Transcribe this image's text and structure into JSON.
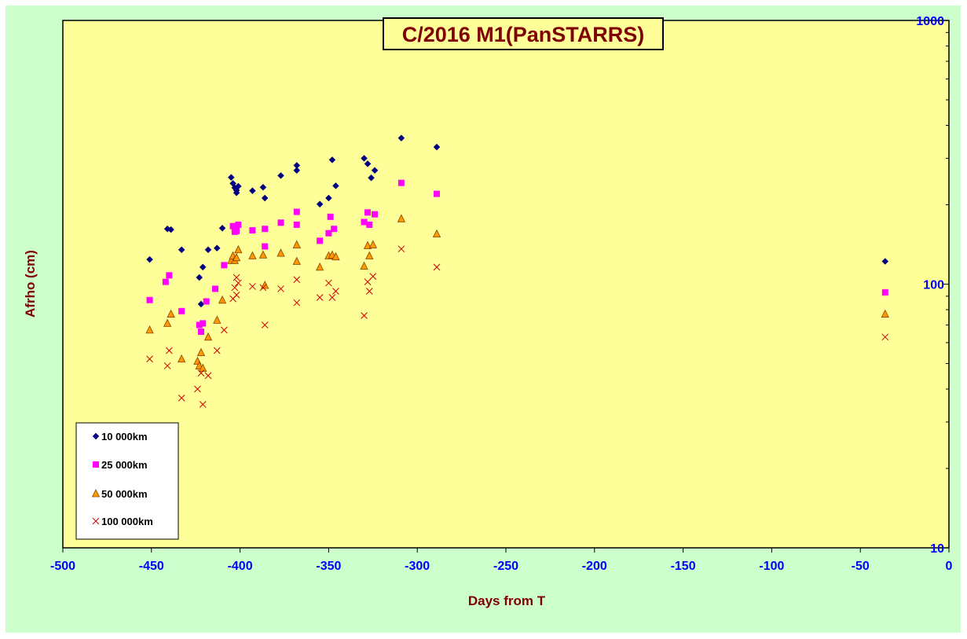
{
  "chart_data": {
    "type": "scatter",
    "title": "C/2016 M1(PanSTARRS)",
    "xlabel": "Days from T",
    "ylabel": "Afrho (cm)",
    "xlim": [
      -500,
      0
    ],
    "ylim": [
      10,
      1000
    ],
    "y_scale": "log",
    "y_axis_side": "right",
    "x_ticks": [
      "-500",
      "-450",
      "-400",
      "-350",
      "-300",
      "-250",
      "-200",
      "-150",
      "-100",
      "-50",
      "0"
    ],
    "y_ticks": [
      "10",
      "100",
      "1000"
    ],
    "grid": false,
    "legend_position": "bottom-left",
    "colors": {
      "outer_background": "#ccffcc",
      "plot_background": "#ffff99",
      "axis_labels": "#800000",
      "tick_labels": "#0000ff",
      "title_text": "#800000"
    },
    "series": [
      {
        "name": "10 000km",
        "marker": "diamond",
        "color": "#000080",
        "points": [
          [
            -451,
            124
          ],
          [
            -441,
            162
          ],
          [
            -439,
            161
          ],
          [
            -433,
            135
          ],
          [
            -423,
            106
          ],
          [
            -422,
            84
          ],
          [
            -421,
            116
          ],
          [
            -418,
            135
          ],
          [
            -413,
            137
          ],
          [
            -410,
            163
          ],
          [
            -405,
            254
          ],
          [
            -404,
            241
          ],
          [
            -403,
            232
          ],
          [
            -402,
            222
          ],
          [
            -402,
            227
          ],
          [
            -401,
            235
          ],
          [
            -393,
            226
          ],
          [
            -387,
            233
          ],
          [
            -386,
            212
          ],
          [
            -377,
            258
          ],
          [
            -368,
            270
          ],
          [
            -368,
            282
          ],
          [
            -355,
            201
          ],
          [
            -350,
            212
          ],
          [
            -348,
            296
          ],
          [
            -346,
            236
          ],
          [
            -330,
            300
          ],
          [
            -328,
            286
          ],
          [
            -326,
            253
          ],
          [
            -324,
            270
          ],
          [
            -309,
            358
          ],
          [
            -289,
            331
          ],
          [
            -36,
            122
          ]
        ]
      },
      {
        "name": "25 000km",
        "marker": "square",
        "color": "#ff00ff",
        "points": [
          [
            -451,
            87
          ],
          [
            -442,
            102
          ],
          [
            -440,
            108
          ],
          [
            -433,
            79
          ],
          [
            -423,
            70
          ],
          [
            -422,
            66
          ],
          [
            -421,
            71
          ],
          [
            -419,
            86
          ],
          [
            -414,
            96
          ],
          [
            -409,
            118
          ],
          [
            -404,
            166
          ],
          [
            -403,
            158
          ],
          [
            -402,
            159
          ],
          [
            -401,
            168
          ],
          [
            -393,
            160
          ],
          [
            -386,
            162
          ],
          [
            -386,
            139
          ],
          [
            -377,
            171
          ],
          [
            -368,
            168
          ],
          [
            -368,
            188
          ],
          [
            -355,
            146
          ],
          [
            -350,
            156
          ],
          [
            -349,
            180
          ],
          [
            -347,
            162
          ],
          [
            -330,
            172
          ],
          [
            -328,
            187
          ],
          [
            -327,
            168
          ],
          [
            -324,
            184
          ],
          [
            -309,
            242
          ],
          [
            -289,
            220
          ],
          [
            -36,
            93
          ]
        ]
      },
      {
        "name": "50 000km",
        "marker": "triangle",
        "color": "#ff9900",
        "points": [
          [
            -451,
            67
          ],
          [
            -441,
            71
          ],
          [
            -439,
            77
          ],
          [
            -433,
            52
          ],
          [
            -424,
            51
          ],
          [
            -423,
            49
          ],
          [
            -422,
            55
          ],
          [
            -421,
            48
          ],
          [
            -418,
            63
          ],
          [
            -413,
            73
          ],
          [
            -410,
            87
          ],
          [
            -405,
            123
          ],
          [
            -404,
            128
          ],
          [
            -403,
            123
          ],
          [
            -402,
            126
          ],
          [
            -401,
            135
          ],
          [
            -393,
            128
          ],
          [
            -387,
            129
          ],
          [
            -386,
            99
          ],
          [
            -377,
            131
          ],
          [
            -368,
            122
          ],
          [
            -368,
            141
          ],
          [
            -355,
            116
          ],
          [
            -350,
            128
          ],
          [
            -348,
            129
          ],
          [
            -346,
            127
          ],
          [
            -330,
            117
          ],
          [
            -328,
            140
          ],
          [
            -327,
            128
          ],
          [
            -325,
            141
          ],
          [
            -309,
            177
          ],
          [
            -289,
            155
          ],
          [
            -36,
            77
          ]
        ]
      },
      {
        "name": "100 000km",
        "marker": "x",
        "color": "#cc0000",
        "points": [
          [
            -451,
            52
          ],
          [
            -441,
            49
          ],
          [
            -440,
            56
          ],
          [
            -433,
            37
          ],
          [
            -424,
            40
          ],
          [
            -422,
            46
          ],
          [
            -421,
            35
          ],
          [
            -418,
            45
          ],
          [
            -413,
            56
          ],
          [
            -409,
            67
          ],
          [
            -404,
            88
          ],
          [
            -403,
            97
          ],
          [
            -402,
            91
          ],
          [
            -401,
            101
          ],
          [
            -402,
            106
          ],
          [
            -393,
            98
          ],
          [
            -387,
            97
          ],
          [
            -386,
            70
          ],
          [
            -377,
            96
          ],
          [
            -368,
            85
          ],
          [
            -368,
            104
          ],
          [
            -355,
            89
          ],
          [
            -350,
            101
          ],
          [
            -348,
            89
          ],
          [
            -346,
            94
          ],
          [
            -330,
            76
          ],
          [
            -328,
            102
          ],
          [
            -327,
            94
          ],
          [
            -325,
            107
          ],
          [
            -309,
            136
          ],
          [
            -289,
            116
          ],
          [
            -36,
            63
          ]
        ]
      }
    ]
  }
}
